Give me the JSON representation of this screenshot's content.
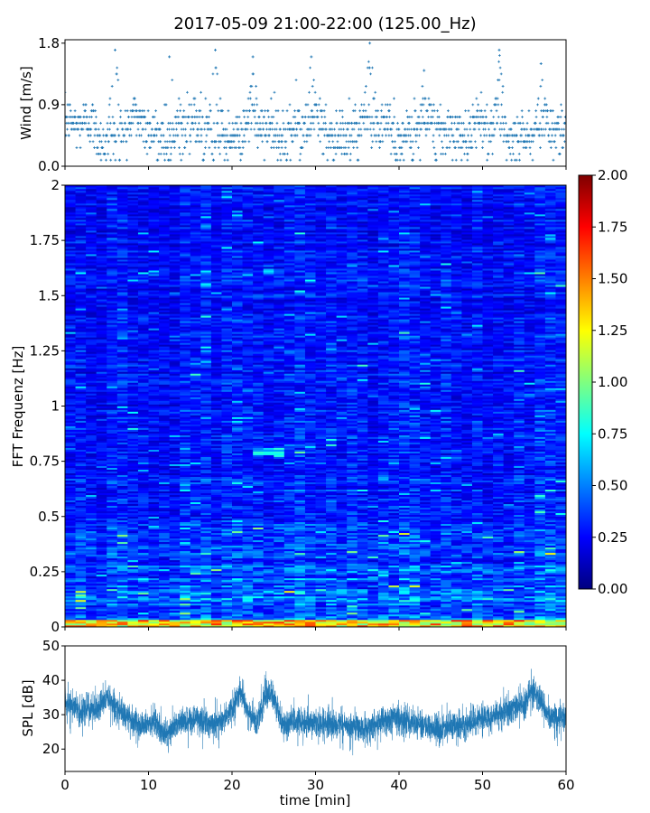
{
  "figure": {
    "title": "2017-05-09 21:00-22:00 (125.00_Hz)"
  },
  "chart_data": [
    {
      "type": "scatter",
      "name": "wind",
      "ylabel": "Wind [m/s]",
      "ylim": [
        0,
        1.85
      ],
      "yticks": [
        "0.0",
        "0.9",
        "1.8"
      ],
      "ytick_values": [
        0.0,
        0.9,
        1.8
      ],
      "xlim": [
        0,
        60
      ],
      "marker": "+",
      "color": "#1f77b4",
      "y_quantization": 0.09,
      "typical_range": [
        0.1,
        1.0
      ],
      "peaks": [
        {
          "x": 6.0,
          "y": 1.7
        },
        {
          "x": 12.5,
          "y": 1.6
        },
        {
          "x": 18.0,
          "y": 1.7
        },
        {
          "x": 22.5,
          "y": 1.6
        },
        {
          "x": 29.5,
          "y": 1.6
        },
        {
          "x": 36.5,
          "y": 1.8
        },
        {
          "x": 43.0,
          "y": 1.4
        },
        {
          "x": 52.0,
          "y": 1.7
        },
        {
          "x": 57.0,
          "y": 1.5
        }
      ]
    },
    {
      "type": "heatmap",
      "name": "spectrogram",
      "ylabel": "FFT Frequenz [Hz]",
      "xlim": [
        0,
        60
      ],
      "ylim": [
        0,
        2
      ],
      "yticks": [
        "0",
        "0.25",
        "0.5",
        "0.75",
        "1",
        "1.25",
        "1.5",
        "1.75",
        "2"
      ],
      "ytick_values": [
        0,
        0.25,
        0.5,
        0.75,
        1,
        1.25,
        1.5,
        1.75,
        2
      ],
      "colormap": "jet",
      "colorbar": {
        "range": [
          0,
          2
        ],
        "ticks": [
          "0.00",
          "0.25",
          "0.50",
          "0.75",
          "1.00",
          "1.25",
          "1.50",
          "1.75",
          "2.00"
        ],
        "tick_values": [
          0,
          0.25,
          0.5,
          0.75,
          1,
          1.25,
          1.5,
          1.75,
          2
        ]
      },
      "typical_value": 0.25,
      "highlights": [
        {
          "x": [
            23,
            26
          ],
          "f": [
            0.78,
            0.81
          ],
          "value": 0.7
        },
        {
          "x": [
            24,
            26.5
          ],
          "f": [
            1.6,
            1.62
          ],
          "value": 0.55
        },
        {
          "x": [
            0,
            60
          ],
          "f": [
            0,
            0.03
          ],
          "value": 1.3
        }
      ]
    },
    {
      "type": "line",
      "name": "spl",
      "ylabel": "SPL [dB]",
      "xlabel": "time [min]",
      "xlim": [
        0,
        60
      ],
      "ylim": [
        13.5,
        50
      ],
      "yticks": [
        "20",
        "30",
        "40",
        "50"
      ],
      "ytick_values": [
        20,
        30,
        40,
        50
      ],
      "xticks": [
        "0",
        "10",
        "20",
        "30",
        "40",
        "50",
        "60"
      ],
      "xtick_values": [
        0,
        10,
        20,
        30,
        40,
        50,
        60
      ],
      "color": "#1f77b4",
      "envelope_x": [
        0,
        2,
        4,
        5,
        7,
        9,
        11,
        12,
        14,
        16,
        18,
        19,
        20,
        21,
        22,
        23,
        24,
        25,
        26,
        28,
        30,
        33,
        36,
        38,
        40,
        43,
        45,
        48,
        50,
        52,
        54,
        55,
        56,
        57,
        58,
        59,
        60
      ],
      "envelope_mean": [
        34,
        31,
        32,
        35,
        30,
        27,
        28,
        24,
        28,
        29,
        27,
        28,
        32,
        37,
        30,
        28,
        36,
        35,
        27,
        28,
        27,
        27,
        26,
        28,
        29,
        27,
        26,
        27,
        29,
        30,
        32,
        33,
        38,
        33,
        30,
        29,
        29
      ],
      "envelope_spread": 3.5
    }
  ]
}
